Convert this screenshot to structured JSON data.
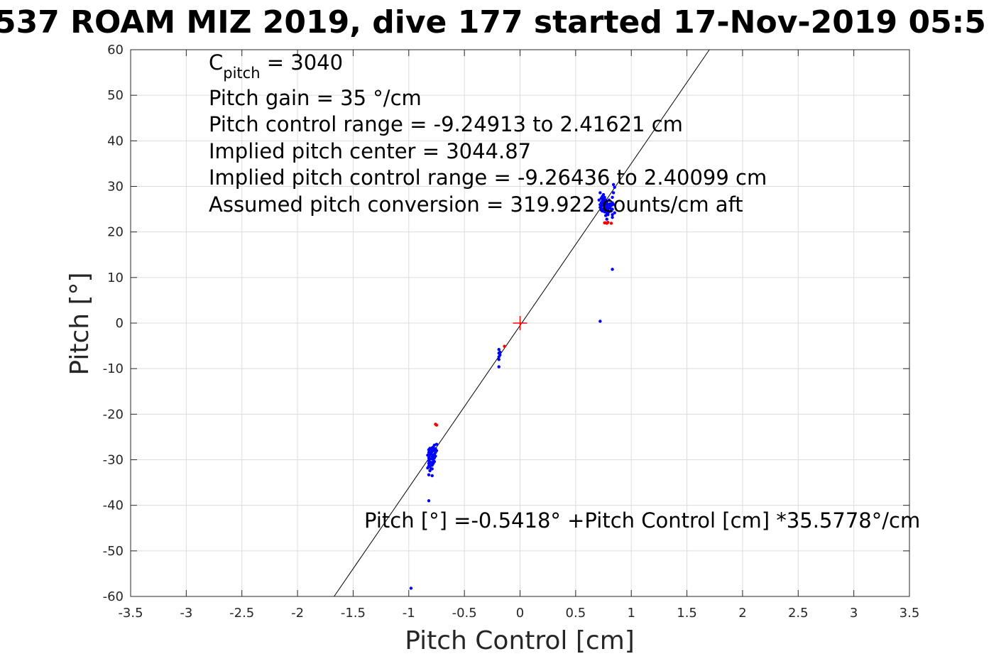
{
  "chart_data": {
    "type": "scatter",
    "title": "537 ROAM MIZ 2019, dive 177 started 17-Nov-2019 05:5",
    "xlabel": "Pitch Control [cm]",
    "ylabel": "Pitch [°]",
    "xlim": [
      -3.5,
      3.5
    ],
    "ylim": [
      -60,
      60
    ],
    "x_ticks": [
      -3.5,
      -3,
      -2.5,
      -2,
      -1.5,
      -1,
      -0.5,
      0,
      0.5,
      1,
      1.5,
      2,
      2.5,
      3,
      3.5
    ],
    "x_tick_labels": [
      "-3.5",
      "-3",
      "-2.5",
      "-2",
      "-1.5",
      "-1",
      "-0.5",
      "0",
      "0.5",
      "1",
      "1.5",
      "2",
      "2.5",
      "3",
      "3.5"
    ],
    "y_ticks": [
      60,
      50,
      40,
      30,
      20,
      10,
      0,
      -10,
      -20,
      -30,
      -40,
      -50,
      -60
    ],
    "y_tick_labels": [
      "60",
      "50",
      "40",
      "30",
      "20",
      "10",
      "0",
      "-10",
      "-20",
      "-30",
      "-40",
      "-50",
      "-60"
    ],
    "grid": true,
    "series": [
      {
        "color": "#0000ff",
        "points": [
          [
            -0.98,
            -58.2
          ],
          [
            -0.82,
            -39.0
          ],
          [
            -0.82,
            -33.3
          ],
          [
            -0.79,
            -33.5
          ],
          [
            -0.83,
            -29.0
          ],
          [
            -0.82,
            -29.6
          ],
          [
            -0.82,
            -30.2
          ],
          [
            -0.82,
            -30.8
          ],
          [
            -0.82,
            -31.4
          ],
          [
            -0.82,
            -28.4
          ],
          [
            -0.82,
            -27.8
          ],
          [
            -0.81,
            -29.0
          ],
          [
            -0.81,
            -30.5
          ],
          [
            -0.81,
            -31.5
          ],
          [
            -0.81,
            -28.0
          ],
          [
            -0.81,
            -27.5
          ],
          [
            -0.8,
            -28.6
          ],
          [
            -0.8,
            -29.8
          ],
          [
            -0.8,
            -31.0
          ],
          [
            -0.8,
            -27.8
          ],
          [
            -0.8,
            -32.0
          ],
          [
            -0.79,
            -28.2
          ],
          [
            -0.79,
            -29.4
          ],
          [
            -0.79,
            -30.6
          ],
          [
            -0.79,
            -31.2
          ],
          [
            -0.79,
            -27.4
          ],
          [
            -0.78,
            -28.0
          ],
          [
            -0.78,
            -29.0
          ],
          [
            -0.78,
            -30.0
          ],
          [
            -0.78,
            -30.8
          ],
          [
            -0.78,
            -27.2
          ],
          [
            -0.77,
            -27.8
          ],
          [
            -0.77,
            -28.8
          ],
          [
            -0.77,
            -29.6
          ],
          [
            -0.77,
            -26.8
          ],
          [
            -0.76,
            -27.6
          ],
          [
            -0.76,
            -28.4
          ],
          [
            -0.76,
            -29.2
          ],
          [
            -0.75,
            -26.6
          ],
          [
            -0.75,
            -28.0
          ],
          [
            -0.83,
            -31.8
          ],
          [
            -0.81,
            -32.4
          ],
          [
            -0.79,
            -32.0
          ],
          [
            -0.77,
            -30.4
          ],
          [
            -0.19,
            -5.8
          ],
          [
            -0.19,
            -6.6
          ],
          [
            -0.19,
            -7.4
          ],
          [
            -0.19,
            -8.0
          ],
          [
            -0.19,
            -9.6
          ],
          [
            -0.18,
            -6.4
          ],
          [
            -0.18,
            -7.0
          ],
          [
            0.72,
            0.4
          ],
          [
            0.83,
            11.8
          ],
          [
            0.71,
            27.0
          ],
          [
            0.72,
            26.0
          ],
          [
            0.72,
            28.6
          ],
          [
            0.72,
            25.4
          ],
          [
            0.73,
            27.4
          ],
          [
            0.73,
            26.4
          ],
          [
            0.73,
            25.2
          ],
          [
            0.73,
            24.8
          ],
          [
            0.74,
            27.8
          ],
          [
            0.74,
            26.8
          ],
          [
            0.74,
            25.8
          ],
          [
            0.74,
            24.6
          ],
          [
            0.75,
            27.2
          ],
          [
            0.75,
            26.2
          ],
          [
            0.75,
            25.0
          ],
          [
            0.75,
            28.2
          ],
          [
            0.76,
            26.6
          ],
          [
            0.76,
            25.6
          ],
          [
            0.76,
            24.4
          ],
          [
            0.76,
            27.6
          ],
          [
            0.77,
            26.0
          ],
          [
            0.77,
            24.8
          ],
          [
            0.77,
            27.0
          ],
          [
            0.77,
            23.6
          ],
          [
            0.78,
            25.4
          ],
          [
            0.78,
            24.2
          ],
          [
            0.78,
            26.4
          ],
          [
            0.78,
            22.8
          ],
          [
            0.79,
            25.0
          ],
          [
            0.79,
            26.0
          ],
          [
            0.79,
            23.8
          ],
          [
            0.8,
            25.6
          ],
          [
            0.8,
            24.4
          ],
          [
            0.8,
            27.0
          ],
          [
            0.81,
            25.2
          ],
          [
            0.81,
            26.2
          ],
          [
            0.82,
            25.8
          ],
          [
            0.82,
            24.6
          ],
          [
            0.83,
            26.4
          ],
          [
            0.83,
            27.6
          ],
          [
            0.83,
            25.0
          ],
          [
            0.83,
            23.8
          ],
          [
            0.83,
            23.2
          ],
          [
            0.84,
            30.4
          ],
          [
            0.84,
            28.6
          ],
          [
            0.84,
            26.0
          ],
          [
            0.85,
            24.2
          ],
          [
            0.85,
            29.8
          ]
        ]
      },
      {
        "color": "#ff0000",
        "points": [
          [
            -0.76,
            -22.2
          ],
          [
            -0.75,
            -22.4
          ],
          [
            -0.14,
            -5.1
          ],
          [
            0.76,
            22.0
          ],
          [
            0.77,
            22.0
          ],
          [
            0.78,
            21.9
          ],
          [
            0.79,
            22.1
          ],
          [
            0.82,
            21.9
          ]
        ]
      }
    ],
    "fit_line": {
      "intercept": -0.5418,
      "slope": 35.5778
    },
    "center_marker": {
      "x": 0,
      "y": 0,
      "color": "#ff0000"
    },
    "annotations": [
      {
        "id": "cpitch",
        "base": "C",
        "sub": "pitch",
        "suffix": " = 3040"
      },
      {
        "id": "gain",
        "text": "Pitch gain = 35 °/cm"
      },
      {
        "id": "range",
        "text": "Pitch control range = -9.24913 to 2.41621 cm"
      },
      {
        "id": "center",
        "text": "Implied pitch center = 3044.87"
      },
      {
        "id": "implied_range",
        "text": "Implied pitch control range = -9.26436 to 2.40099 cm"
      },
      {
        "id": "conversion",
        "text": "Assumed pitch conversion = 319.922 counts/cm aft"
      }
    ],
    "fit_label": "Pitch [°] =-0.5418° +Pitch Control [cm] *35.5778°/cm"
  }
}
